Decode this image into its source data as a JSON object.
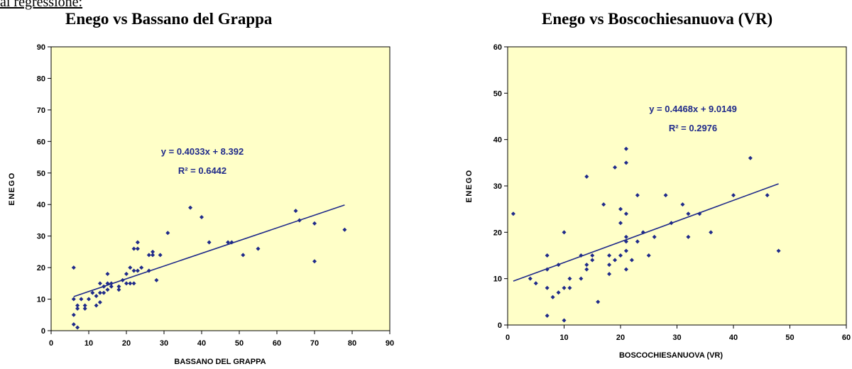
{
  "page": {
    "top_text": "ai regressione:"
  },
  "chart_data": [
    {
      "type": "scatter",
      "title": "Enego  vs  Bassano del Grappa",
      "xlabel": "BASSANO DEL GRAPPA",
      "ylabel": "ENEGO",
      "xlim": [
        0,
        90
      ],
      "ylim": [
        0,
        90
      ],
      "xticks": [
        0,
        10,
        20,
        30,
        40,
        50,
        60,
        70,
        80,
        90
      ],
      "yticks": [
        0,
        10,
        20,
        30,
        40,
        50,
        60,
        70,
        80,
        90
      ],
      "grid": false,
      "background": "#ffffc8",
      "point_color": "#1f2a8a",
      "line_color": "#1f2a8a",
      "trendline": {
        "slope": 0.4033,
        "intercept": 8.392,
        "x_range": [
          6,
          78
        ]
      },
      "equation_label": "y = 0.4033x + 8.392",
      "r2_label": "R² = 0.6442",
      "points": [
        [
          6,
          2
        ],
        [
          6,
          5
        ],
        [
          6,
          10
        ],
        [
          6,
          20
        ],
        [
          7,
          1
        ],
        [
          7,
          7
        ],
        [
          7,
          8
        ],
        [
          8,
          10
        ],
        [
          9,
          7
        ],
        [
          9,
          8
        ],
        [
          10,
          10
        ],
        [
          11,
          12
        ],
        [
          12,
          8
        ],
        [
          12,
          11
        ],
        [
          13,
          9
        ],
        [
          13,
          12
        ],
        [
          13,
          15
        ],
        [
          14,
          12
        ],
        [
          14,
          14
        ],
        [
          15,
          13
        ],
        [
          15,
          15
        ],
        [
          15,
          18
        ],
        [
          16,
          14
        ],
        [
          16,
          15
        ],
        [
          18,
          13
        ],
        [
          18,
          14
        ],
        [
          19,
          16
        ],
        [
          20,
          15
        ],
        [
          20,
          18
        ],
        [
          21,
          15
        ],
        [
          21,
          20
        ],
        [
          22,
          15
        ],
        [
          22,
          19
        ],
        [
          22,
          26
        ],
        [
          23,
          26
        ],
        [
          23,
          28
        ],
        [
          23,
          19
        ],
        [
          24,
          20
        ],
        [
          26,
          19
        ],
        [
          26,
          24
        ],
        [
          27,
          25
        ],
        [
          27,
          24
        ],
        [
          28,
          16
        ],
        [
          29,
          24
        ],
        [
          31,
          31
        ],
        [
          37,
          39
        ],
        [
          40,
          36
        ],
        [
          42,
          28
        ],
        [
          47,
          28
        ],
        [
          48,
          28
        ],
        [
          51,
          24
        ],
        [
          55,
          26
        ],
        [
          65,
          38
        ],
        [
          66,
          35
        ],
        [
          70,
          22
        ],
        [
          70,
          34
        ],
        [
          78,
          32
        ]
      ]
    },
    {
      "type": "scatter",
      "title": "Enego  vs  Boscochiesanuova (VR)",
      "xlabel": "BOSCOCHIESANUOVA (VR)",
      "ylabel": "ENEGO",
      "xlim": [
        0,
        60
      ],
      "ylim": [
        0,
        60
      ],
      "xticks": [
        0,
        10,
        20,
        30,
        40,
        50,
        60
      ],
      "yticks": [
        0,
        10,
        20,
        30,
        40,
        50,
        60
      ],
      "grid": false,
      "background": "#ffffc8",
      "point_color": "#1f2a8a",
      "line_color": "#1f2a8a",
      "trendline": {
        "slope": 0.4468,
        "intercept": 9.0149,
        "x_range": [
          1,
          48
        ]
      },
      "equation_label": "y = 0.4468x + 9.0149",
      "r2_label": "R² = 0.2976",
      "points": [
        [
          1,
          24
        ],
        [
          4,
          10
        ],
        [
          5,
          9
        ],
        [
          7,
          2
        ],
        [
          7,
          8
        ],
        [
          7,
          12
        ],
        [
          7,
          15
        ],
        [
          8,
          6
        ],
        [
          9,
          7
        ],
        [
          9,
          13
        ],
        [
          10,
          1
        ],
        [
          10,
          8
        ],
        [
          10,
          20
        ],
        [
          11,
          8
        ],
        [
          11,
          10
        ],
        [
          13,
          10
        ],
        [
          13,
          15
        ],
        [
          14,
          12
        ],
        [
          14,
          13
        ],
        [
          14,
          32
        ],
        [
          15,
          14
        ],
        [
          15,
          15
        ],
        [
          16,
          5
        ],
        [
          17,
          26
        ],
        [
          18,
          11
        ],
        [
          18,
          13
        ],
        [
          18,
          15
        ],
        [
          19,
          14
        ],
        [
          19,
          34
        ],
        [
          20,
          15
        ],
        [
          20,
          22
        ],
        [
          20,
          25
        ],
        [
          21,
          12
        ],
        [
          21,
          16
        ],
        [
          21,
          18
        ],
        [
          21,
          19
        ],
        [
          21,
          24
        ],
        [
          21,
          35
        ],
        [
          21,
          38
        ],
        [
          22,
          14
        ],
        [
          23,
          18
        ],
        [
          23,
          28
        ],
        [
          24,
          20
        ],
        [
          25,
          15
        ],
        [
          26,
          19
        ],
        [
          28,
          28
        ],
        [
          29,
          22
        ],
        [
          31,
          26
        ],
        [
          32,
          19
        ],
        [
          32,
          24
        ],
        [
          34,
          24
        ],
        [
          36,
          20
        ],
        [
          40,
          28
        ],
        [
          43,
          36
        ],
        [
          46,
          28
        ],
        [
          48,
          16
        ]
      ]
    }
  ]
}
